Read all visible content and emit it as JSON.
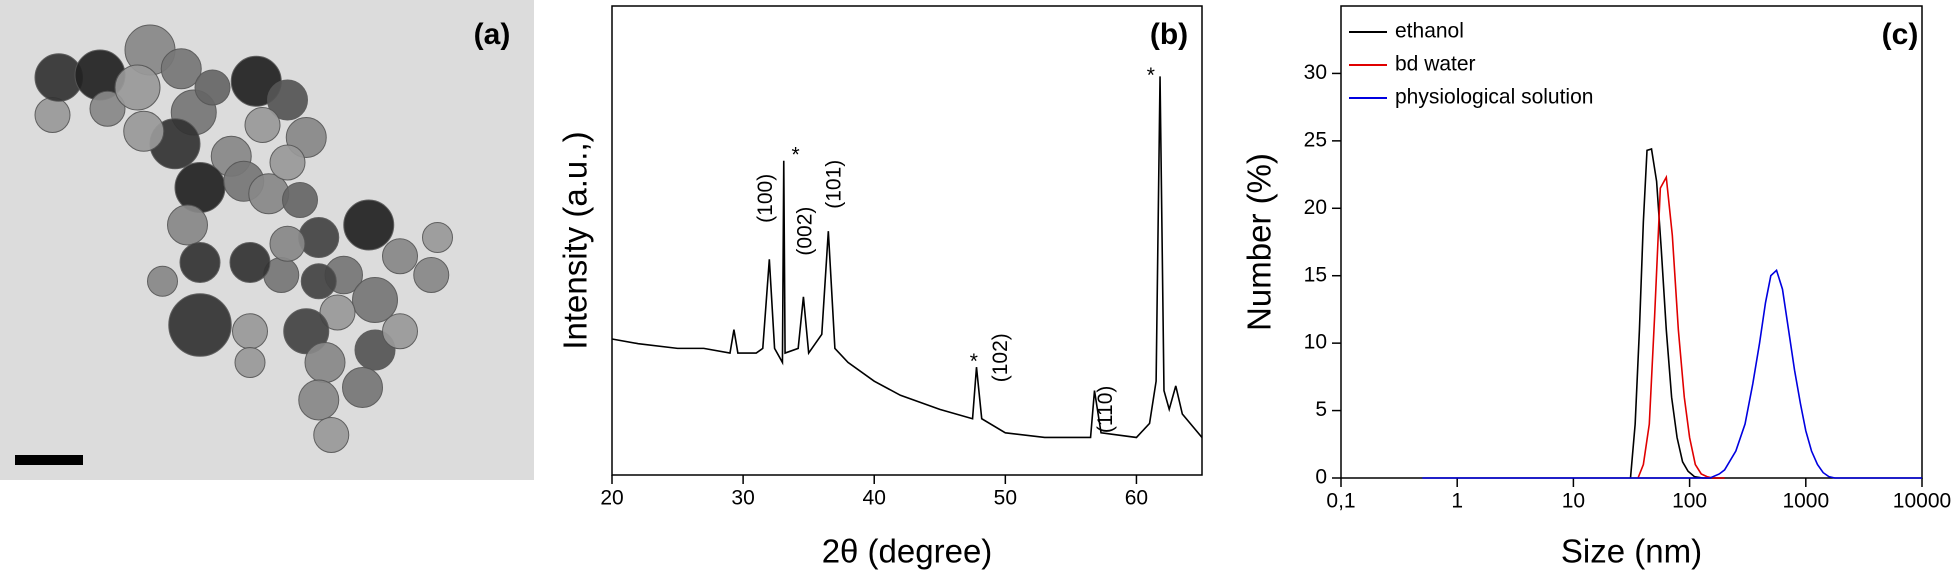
{
  "image_panel": {
    "label": "(a)"
  },
  "chart_data": [
    {
      "type": "line",
      "label": "(b)",
      "xlabel": "2θ (degree)",
      "ylabel": "Intensity (a.u.,)",
      "xlim": [
        20,
        65
      ],
      "xticks": [
        20,
        30,
        40,
        50,
        60
      ],
      "ylim": [
        0,
        100
      ],
      "color": "#000000",
      "x": [
        20,
        22,
        25,
        27,
        29,
        29.3,
        29.6,
        31,
        31.5,
        32,
        32.4,
        33,
        33.1,
        33.2,
        34.2,
        34.6,
        35,
        36,
        36.5,
        37,
        38,
        40,
        42,
        45,
        47.5,
        47.8,
        48.2,
        50,
        53,
        55,
        56.5,
        56.8,
        57.3,
        60,
        61,
        61.5,
        61.8,
        62.1,
        62.5,
        63,
        63.5,
        65
      ],
      "values": [
        29,
        28,
        27,
        27,
        26,
        31,
        26,
        26,
        27,
        46,
        27,
        24,
        67,
        26,
        27,
        38,
        26,
        30,
        52,
        27,
        24,
        20,
        17,
        14,
        12,
        23,
        12,
        9,
        8,
        8,
        8,
        18,
        9,
        8,
        11,
        20,
        85,
        18,
        14,
        19,
        13,
        8
      ],
      "annotations": [
        {
          "text": "(100)",
          "x": 31.8,
          "y": 59,
          "rotation": -90
        },
        {
          "text": "*",
          "x": 34.0,
          "y": 68
        },
        {
          "text": "(002)",
          "x": 34.8,
          "y": 52,
          "rotation": -90
        },
        {
          "text": "(101)",
          "x": 37.0,
          "y": 62,
          "rotation": -90
        },
        {
          "text": "*",
          "x": 47.6,
          "y": 24
        },
        {
          "text": "(102)",
          "x": 49.7,
          "y": 25,
          "rotation": -90
        },
        {
          "text": "(110)",
          "x": 57.7,
          "y": 14,
          "rotation": -90
        },
        {
          "text": "*",
          "x": 61.1,
          "y": 85
        }
      ]
    },
    {
      "type": "line",
      "label": "(c)",
      "xlabel": "Size (nm)",
      "ylabel": "Number (%)",
      "xscale": "log",
      "xlim": [
        0.1,
        10000
      ],
      "xticks": [
        {
          "value": 0.1,
          "label": "0,1"
        },
        1,
        10,
        100,
        1000,
        10000
      ],
      "ylim": [
        0,
        35
      ],
      "yticks": [
        0,
        5,
        10,
        15,
        20,
        25,
        30
      ],
      "legend": "upper left",
      "series": [
        {
          "name": "ethanol",
          "color": "#000000",
          "x": [
            31,
            34,
            37,
            40,
            43,
            47,
            52,
            57,
            63,
            70,
            78,
            87,
            97,
            110,
            130,
            200
          ],
          "values": [
            0,
            4,
            11,
            19,
            24.3,
            24.4,
            22,
            17,
            11,
            6,
            3,
            1.2,
            0.5,
            0.1,
            0,
            0
          ]
        },
        {
          "name": "bd water",
          "color": "#e00000",
          "x": [
            36,
            40,
            45,
            50,
            56,
            63,
            71,
            80,
            90,
            100,
            112,
            126,
            141,
            158,
            200
          ],
          "values": [
            0,
            1,
            4,
            12,
            21.5,
            22.3,
            18,
            11,
            6,
            3,
            1,
            0.3,
            0.1,
            0,
            0
          ]
        },
        {
          "name": "physiological solution",
          "color": "#0000e0",
          "x": [
            0.5,
            100,
            150,
            180,
            200,
            250,
            300,
            350,
            400,
            450,
            500,
            560,
            630,
            710,
            800,
            900,
            1000,
            1120,
            1260,
            1410,
            1580,
            1780,
            2000,
            2500,
            10000
          ],
          "values": [
            0,
            0,
            0,
            0.3,
            0.6,
            2,
            4,
            7,
            10,
            13,
            15,
            15.4,
            14,
            11,
            8,
            5.5,
            3.5,
            2,
            1,
            0.4,
            0.1,
            0,
            0,
            0,
            0
          ]
        }
      ]
    }
  ]
}
